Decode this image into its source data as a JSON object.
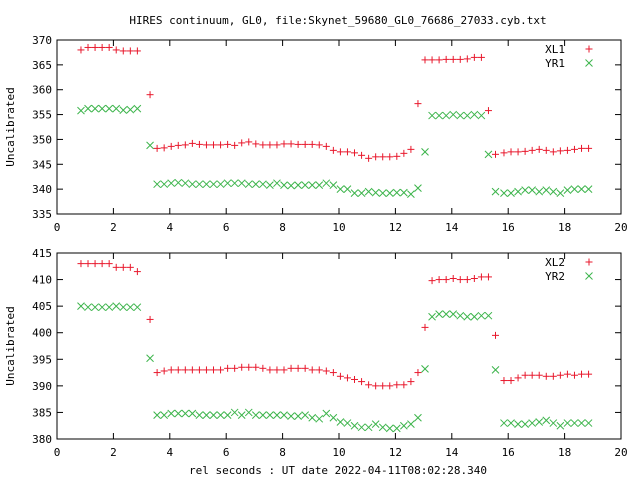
{
  "title": "HIRES continuum, GL0, file:Skynet_59680_GL0_76686_27033.cyb.txt",
  "xlabel": "rel seconds : UT date 2022-04-11T08:02:28.340",
  "colors": {
    "series_a": "#e8182c",
    "series_b": "#3cb44b",
    "axes": "#000000",
    "background": "#ffffff"
  },
  "chart_data": [
    {
      "type": "scatter",
      "ylabel": "Uncalibrated",
      "xlim": [
        0,
        20
      ],
      "ylim": [
        335,
        370
      ],
      "xticks": [
        0,
        2,
        4,
        6,
        8,
        10,
        12,
        14,
        16,
        18,
        20
      ],
      "yticks": [
        335,
        340,
        345,
        350,
        355,
        360,
        365,
        370
      ],
      "legend_position": "top-right",
      "series": [
        {
          "name": "XL1",
          "marker": "plus",
          "color": "#e8182c",
          "x": [
            0.85,
            1.1,
            1.35,
            1.6,
            1.85,
            2.1,
            2.35,
            2.6,
            2.85,
            3.3,
            3.55,
            3.8,
            4.05,
            4.3,
            4.55,
            4.8,
            5.05,
            5.3,
            5.55,
            5.8,
            6.05,
            6.3,
            6.55,
            6.8,
            7.05,
            7.3,
            7.55,
            7.8,
            8.05,
            8.3,
            8.55,
            8.8,
            9.05,
            9.3,
            9.55,
            9.8,
            10.05,
            10.3,
            10.55,
            10.8,
            11.05,
            11.3,
            11.55,
            11.8,
            12.05,
            12.3,
            12.55,
            12.8,
            13.05,
            13.3,
            13.55,
            13.8,
            14.05,
            14.3,
            14.55,
            14.8,
            15.05,
            15.3,
            15.55,
            15.85,
            16.1,
            16.35,
            16.6,
            16.85,
            17.1,
            17.35,
            17.6,
            17.85,
            18.1,
            18.35,
            18.6,
            18.85
          ],
          "y": [
            368.0,
            368.5,
            368.5,
            368.5,
            368.5,
            368.0,
            367.8,
            367.8,
            367.8,
            359.0,
            348.2,
            348.3,
            348.6,
            348.8,
            348.9,
            349.2,
            349.0,
            348.9,
            348.9,
            348.9,
            349.0,
            348.8,
            349.3,
            349.5,
            349.1,
            348.9,
            348.9,
            348.9,
            349.1,
            349.1,
            349.0,
            349.0,
            349.0,
            348.9,
            348.6,
            347.8,
            347.5,
            347.5,
            347.3,
            346.8,
            346.2,
            346.5,
            346.5,
            346.5,
            346.6,
            347.2,
            348.0,
            357.2,
            366.0,
            366.0,
            366.0,
            366.1,
            366.1,
            366.1,
            366.2,
            366.5,
            366.5,
            355.8,
            347.0,
            347.3,
            347.5,
            347.5,
            347.6,
            347.8,
            348.0,
            347.8,
            347.5,
            347.7,
            347.8,
            348.0,
            348.2,
            348.2
          ]
        },
        {
          "name": "YR1",
          "marker": "cross",
          "color": "#3cb44b",
          "x": [
            0.85,
            1.1,
            1.35,
            1.6,
            1.85,
            2.1,
            2.35,
            2.6,
            2.85,
            3.3,
            3.55,
            3.8,
            4.05,
            4.3,
            4.55,
            4.8,
            5.05,
            5.3,
            5.55,
            5.8,
            6.05,
            6.3,
            6.55,
            6.8,
            7.05,
            7.3,
            7.55,
            7.8,
            8.05,
            8.3,
            8.55,
            8.8,
            9.05,
            9.3,
            9.55,
            9.8,
            10.05,
            10.3,
            10.55,
            10.8,
            11.05,
            11.3,
            11.55,
            11.8,
            12.05,
            12.3,
            12.55,
            12.8,
            13.05,
            13.3,
            13.55,
            13.8,
            14.05,
            14.3,
            14.55,
            14.8,
            15.05,
            15.3,
            15.55,
            15.85,
            16.1,
            16.35,
            16.6,
            16.85,
            17.1,
            17.35,
            17.6,
            17.85,
            18.1,
            18.35,
            18.6,
            18.85
          ],
          "y": [
            355.8,
            356.2,
            356.2,
            356.2,
            356.2,
            356.2,
            355.9,
            356.0,
            356.2,
            348.8,
            341.0,
            341.0,
            341.2,
            341.3,
            341.2,
            341.0,
            341.0,
            341.0,
            341.0,
            341.0,
            341.2,
            341.2,
            341.2,
            341.0,
            341.0,
            341.0,
            340.8,
            341.2,
            340.8,
            340.7,
            340.8,
            340.8,
            340.8,
            340.8,
            341.2,
            340.8,
            340.0,
            340.0,
            339.2,
            339.2,
            339.5,
            339.3,
            339.2,
            339.2,
            339.3,
            339.3,
            339.0,
            340.2,
            347.5,
            354.8,
            354.8,
            354.8,
            355.0,
            354.8,
            354.8,
            355.0,
            354.8,
            347.0,
            339.5,
            339.2,
            339.2,
            339.5,
            339.8,
            339.8,
            339.5,
            339.8,
            339.5,
            339.2,
            339.8,
            340.0,
            340.0,
            340.0
          ]
        }
      ]
    },
    {
      "type": "scatter",
      "ylabel": "Uncalibrated",
      "xlim": [
        0,
        20
      ],
      "ylim": [
        380,
        415
      ],
      "xticks": [
        0,
        2,
        4,
        6,
        8,
        10,
        12,
        14,
        16,
        18,
        20
      ],
      "yticks": [
        380,
        385,
        390,
        395,
        400,
        405,
        410,
        415
      ],
      "legend_position": "top-right",
      "series": [
        {
          "name": "XL2",
          "marker": "plus",
          "color": "#e8182c",
          "x": [
            0.85,
            1.1,
            1.35,
            1.6,
            1.85,
            2.1,
            2.35,
            2.6,
            2.85,
            3.3,
            3.55,
            3.8,
            4.05,
            4.3,
            4.55,
            4.8,
            5.05,
            5.3,
            5.55,
            5.8,
            6.05,
            6.3,
            6.55,
            6.8,
            7.05,
            7.3,
            7.55,
            7.8,
            8.05,
            8.3,
            8.55,
            8.8,
            9.05,
            9.3,
            9.55,
            9.8,
            10.05,
            10.3,
            10.55,
            10.8,
            11.05,
            11.3,
            11.55,
            11.8,
            12.05,
            12.3,
            12.55,
            12.8,
            13.05,
            13.3,
            13.55,
            13.8,
            14.05,
            14.3,
            14.55,
            14.8,
            15.05,
            15.3,
            15.55,
            15.85,
            16.1,
            16.35,
            16.6,
            16.85,
            17.1,
            17.35,
            17.6,
            17.85,
            18.1,
            18.35,
            18.6,
            18.85
          ],
          "y": [
            413.0,
            413.0,
            413.0,
            413.0,
            413.0,
            412.3,
            412.3,
            412.3,
            411.5,
            402.5,
            392.5,
            392.8,
            393.0,
            393.0,
            393.0,
            393.0,
            393.0,
            393.0,
            393.0,
            393.0,
            393.3,
            393.3,
            393.5,
            393.5,
            393.5,
            393.3,
            393.0,
            393.0,
            393.0,
            393.3,
            393.3,
            393.3,
            393.0,
            393.0,
            392.8,
            392.5,
            391.8,
            391.5,
            391.2,
            390.8,
            390.2,
            390.0,
            390.0,
            390.0,
            390.2,
            390.2,
            390.8,
            392.5,
            401.0,
            409.8,
            410.0,
            410.0,
            410.2,
            410.0,
            410.0,
            410.2,
            410.5,
            410.5,
            399.5,
            391.0,
            391.0,
            391.5,
            392.0,
            392.0,
            392.0,
            391.8,
            391.8,
            392.0,
            392.2,
            392.0,
            392.2,
            392.2
          ]
        },
        {
          "name": "YR2",
          "marker": "cross",
          "color": "#3cb44b",
          "x": [
            0.85,
            1.1,
            1.35,
            1.6,
            1.85,
            2.1,
            2.35,
            2.6,
            2.85,
            3.3,
            3.55,
            3.8,
            4.05,
            4.3,
            4.55,
            4.8,
            5.05,
            5.3,
            5.55,
            5.8,
            6.05,
            6.3,
            6.55,
            6.8,
            7.05,
            7.3,
            7.55,
            7.8,
            8.05,
            8.3,
            8.55,
            8.8,
            9.05,
            9.3,
            9.55,
            9.8,
            10.05,
            10.3,
            10.55,
            10.8,
            11.05,
            11.3,
            11.55,
            11.8,
            12.05,
            12.3,
            12.55,
            12.8,
            13.05,
            13.3,
            13.55,
            13.8,
            14.05,
            14.3,
            14.55,
            14.8,
            15.05,
            15.3,
            15.55,
            15.85,
            16.1,
            16.35,
            16.6,
            16.85,
            17.1,
            17.35,
            17.6,
            17.85,
            18.1,
            18.35,
            18.6,
            18.85
          ],
          "y": [
            405.0,
            404.8,
            404.8,
            404.8,
            404.8,
            405.0,
            404.8,
            404.8,
            404.8,
            395.2,
            384.5,
            384.5,
            384.8,
            384.8,
            384.8,
            384.8,
            384.5,
            384.5,
            384.5,
            384.5,
            384.5,
            385.0,
            384.5,
            385.0,
            384.5,
            384.5,
            384.5,
            384.5,
            384.5,
            384.3,
            384.3,
            384.5,
            384.0,
            383.8,
            384.8,
            384.0,
            383.2,
            383.0,
            382.5,
            382.2,
            382.2,
            382.8,
            382.2,
            382.0,
            382.0,
            382.5,
            382.8,
            384.0,
            393.2,
            403.0,
            403.5,
            403.5,
            403.5,
            403.2,
            403.0,
            403.0,
            403.2,
            403.2,
            393.0,
            383.0,
            383.0,
            382.8,
            382.8,
            383.0,
            383.2,
            383.5,
            383.0,
            382.5,
            383.0,
            383.0,
            383.0,
            383.0
          ]
        }
      ]
    }
  ]
}
